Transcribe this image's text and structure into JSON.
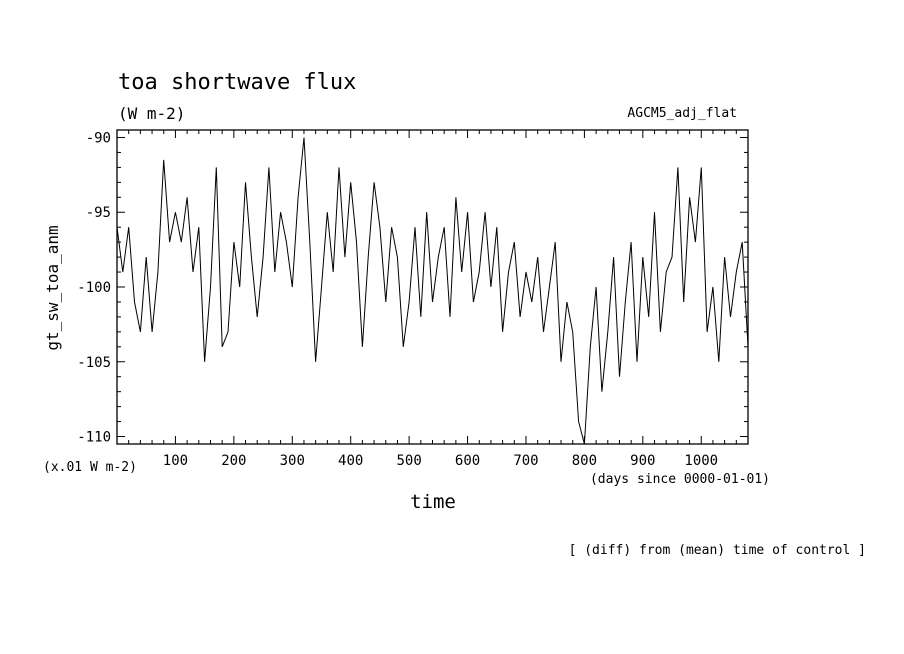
{
  "chart_data": {
    "type": "line",
    "title": "toa shortwave flux",
    "units_label": "(W m-2)",
    "run_label": "AGCM5_adj_flat",
    "ylabel": "gt_sw_toa_anm",
    "y_scale_note": "(x.01 W m-2)",
    "xlabel": "time",
    "x_units_note": "(days since 0000-01-01)",
    "footnote": "[ (diff) from (mean) time of control ]",
    "xlim": [
      0,
      1080
    ],
    "ylim": [
      -110.5,
      -89.5
    ],
    "x_ticks": [
      100,
      200,
      300,
      400,
      500,
      600,
      700,
      800,
      900,
      1000
    ],
    "y_ticks": [
      -90,
      -95,
      -100,
      -105,
      -110
    ],
    "x_tick_labels": [
      "100",
      "200",
      "300",
      "400",
      "500",
      "600",
      "700",
      "800",
      "900",
      "1000"
    ],
    "y_tick_labels": [
      "-90",
      "-95",
      "-100",
      "-105",
      "-110"
    ],
    "grid": false,
    "series": [
      {
        "x": [
          0,
          10,
          20,
          30,
          40,
          50,
          60,
          70,
          80,
          90,
          100,
          110,
          120,
          130,
          140,
          150,
          160,
          170,
          180,
          190,
          200,
          210,
          220,
          230,
          240,
          250,
          260,
          270,
          280,
          290,
          300,
          310,
          320,
          330,
          340,
          350,
          360,
          370,
          380,
          390,
          400,
          410,
          420,
          430,
          440,
          450,
          460,
          470,
          480,
          490,
          500,
          510,
          520,
          530,
          540,
          550,
          560,
          570,
          580,
          590,
          600,
          610,
          620,
          630,
          640,
          650,
          660,
          670,
          680,
          690,
          700,
          710,
          720,
          730,
          740,
          750,
          760,
          770,
          780,
          790,
          800,
          810,
          820,
          830,
          840,
          850,
          860,
          870,
          880,
          890,
          900,
          910,
          920,
          930,
          940,
          950,
          960,
          970,
          980,
          990,
          1000,
          1010,
          1020,
          1030,
          1040,
          1050,
          1060,
          1070,
          1080
        ],
        "values": [
          -96,
          -99,
          -96,
          -101,
          -103,
          -98,
          -103,
          -99,
          -91.5,
          -97,
          -95,
          -97,
          -94,
          -99,
          -96,
          -105,
          -100,
          -92,
          -104,
          -103,
          -97,
          -100,
          -93,
          -98,
          -102,
          -98,
          -92,
          -99,
          -95,
          -97,
          -100,
          -94,
          -90,
          -97,
          -105,
          -100,
          -95,
          -99,
          -92,
          -98,
          -93,
          -97,
          -104,
          -98,
          -93,
          -96,
          -101,
          -96,
          -98,
          -104,
          -101,
          -96,
          -102,
          -95,
          -101,
          -98,
          -96,
          -102,
          -94,
          -99,
          -95,
          -101,
          -99,
          -95,
          -100,
          -96,
          -103,
          -99,
          -97,
          -102,
          -99,
          -101,
          -98,
          -103,
          -100,
          -97,
          -105,
          -101,
          -103,
          -109,
          -110.5,
          -104,
          -100,
          -107,
          -103,
          -98,
          -106,
          -101,
          -97,
          -105,
          -98,
          -102,
          -95,
          -103,
          -99,
          -98,
          -92,
          -101,
          -94,
          -97,
          -92,
          -103,
          -100,
          -105,
          -98,
          -102,
          -99,
          -97,
          -104
        ]
      }
    ]
  }
}
